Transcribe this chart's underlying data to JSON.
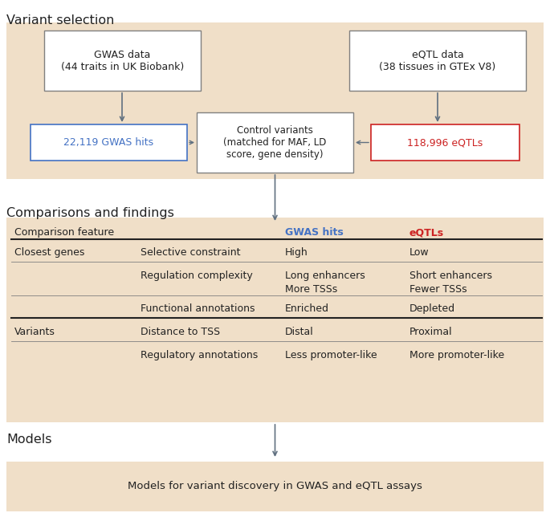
{
  "bg_color": "#f0dfc8",
  "white": "#ffffff",
  "page_bg": "#ffffff",
  "blue_text": "#4472c4",
  "red_text": "#cc2222",
  "dark_text": "#222222",
  "arrow_color": "#607080",
  "border_color": "#808080",
  "section_titles": [
    "Variant selection",
    "Comparisons and findings",
    "Models"
  ],
  "box1_text": "GWAS data\n(44 traits in UK Biobank)",
  "box2_text": "eQTL data\n(38 tissues in GTEx V8)",
  "box3_text": "Control variants\n(matched for MAF, LD\nscore, gene density)",
  "box4_text": "22,119 GWAS hits",
  "box5_text": "118,996 eQTLs",
  "models_text": "Models for variant discovery in GWAS and eQTL assays",
  "table_header": [
    "Comparison feature",
    "GWAS hits",
    "eQTLs"
  ],
  "table_rows": [
    [
      "Closest genes",
      "Selective constraint",
      "High",
      "Low"
    ],
    [
      "",
      "Regulation complexity",
      "Long enhancers\nMore TSSs",
      "Short enhancers\nFewer TSSs"
    ],
    [
      "",
      "Functional annotations",
      "Enriched",
      "Depleted"
    ],
    [
      "Variants",
      "Distance to TSS",
      "Distal",
      "Proximal"
    ],
    [
      "",
      "Regulatory annotations",
      "Less promoter-like",
      "More promoter-like"
    ]
  ]
}
